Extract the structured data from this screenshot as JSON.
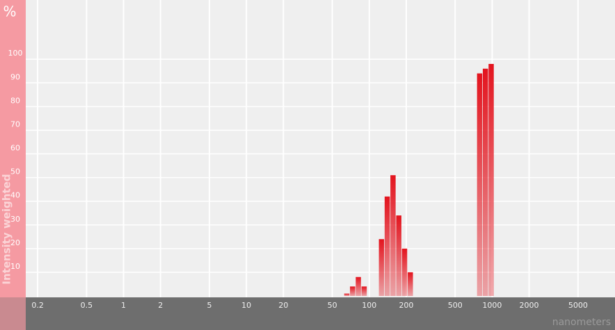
{
  "chart_data": {
    "type": "histogram",
    "y_unit": "%",
    "y_axis_title": "Intensity weighted",
    "x_label": "nanometers",
    "xscale": "log",
    "bins": [
      62.5,
      69.7,
      77.6,
      86.5,
      96.4,
      107.4,
      119.7,
      133.4,
      148.6,
      165.6,
      184.5,
      205.6,
      229.1,
      255.3,
      284.4,
      317.0,
      353.2,
      393.6,
      438.5,
      488.7,
      544.5,
      606.7,
      676.1,
      753.4,
      839.5,
      935.4,
      1042.3
    ],
    "values": [
      1,
      4,
      8,
      4,
      0,
      0,
      24,
      42,
      51,
      34,
      20,
      10,
      0,
      0,
      0,
      0,
      0,
      0,
      0,
      0,
      0,
      0,
      0,
      94,
      96,
      98
    ],
    "color": "#e3141e",
    "xlim": [
      0.16,
      10000
    ],
    "xticks": [
      0.2,
      0.5,
      1,
      2,
      5,
      10,
      20,
      50,
      100,
      200,
      500,
      1000,
      2000,
      5000
    ],
    "ylim": [
      0,
      125
    ],
    "yticks": [
      10,
      20,
      30,
      40,
      50,
      60,
      70,
      80,
      90,
      100
    ],
    "grid": true
  }
}
